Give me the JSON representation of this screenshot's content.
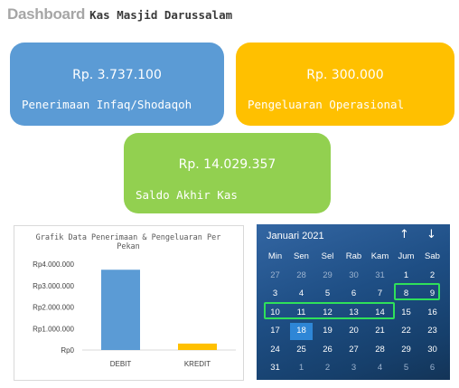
{
  "header": {
    "brand": "Dashboard",
    "title": "Kas Masjid Darussalam"
  },
  "cards": {
    "income": {
      "amount": "Rp. 3.737.100",
      "label": "Penerimaan Infaq/Shodaqoh",
      "color": "#5b9bd5"
    },
    "expense": {
      "amount": "Rp. 300.000",
      "label": "Pengeluaran Operasional",
      "color": "#ffc000"
    },
    "balance": {
      "amount": "Rp. 14.029.357",
      "label": "Saldo Akhir Kas",
      "color": "#92d050"
    }
  },
  "chart_data": {
    "type": "bar",
    "title": "Grafik Data Penerimaan & Pengeluaran Per Pekan",
    "title_lines": [
      "Grafik Data Penerimaan & Pengeluaran Per",
      "Pekan"
    ],
    "categories": [
      "DEBIT",
      "KREDIT"
    ],
    "values": [
      3737100,
      300000
    ],
    "colors": [
      "#5b9bd5",
      "#ffc000"
    ],
    "ylim": [
      0,
      4000000
    ],
    "yticks": [
      0,
      1000000,
      2000000,
      3000000,
      4000000
    ],
    "ytick_labels": [
      "Rp0",
      "Rp1.000.000",
      "Rp2.000.000",
      "Rp3.000.000",
      "Rp4.000.000"
    ],
    "grid": false,
    "xlabel": "",
    "ylabel": ""
  },
  "calendar": {
    "month_label": "Januari 2021",
    "nav_up_icon": "arrow-up-icon",
    "nav_down_icon": "arrow-down-icon",
    "weekdays": [
      "Min",
      "Sen",
      "Sel",
      "Rab",
      "Kam",
      "Jum",
      "Sab"
    ],
    "weeks": [
      [
        "27",
        "28",
        "29",
        "30",
        "31",
        "1",
        "2"
      ],
      [
        "3",
        "4",
        "5",
        "6",
        "7",
        "8",
        "9"
      ],
      [
        "10",
        "11",
        "12",
        "13",
        "14",
        "15",
        "16"
      ],
      [
        "17",
        "18",
        "19",
        "20",
        "21",
        "22",
        "23"
      ],
      [
        "24",
        "25",
        "26",
        "27",
        "28",
        "29",
        "30"
      ],
      [
        "31",
        "1",
        "2",
        "3",
        "4",
        "5",
        "6"
      ]
    ],
    "muted_days": [
      [
        0,
        0
      ],
      [
        0,
        1
      ],
      [
        0,
        2
      ],
      [
        0,
        3
      ],
      [
        0,
        4
      ],
      [
        5,
        1
      ],
      [
        5,
        2
      ],
      [
        5,
        3
      ],
      [
        5,
        4
      ],
      [
        5,
        5
      ],
      [
        5,
        6
      ]
    ],
    "today": [
      3,
      1
    ],
    "highlight_color": "#2fe05a"
  }
}
